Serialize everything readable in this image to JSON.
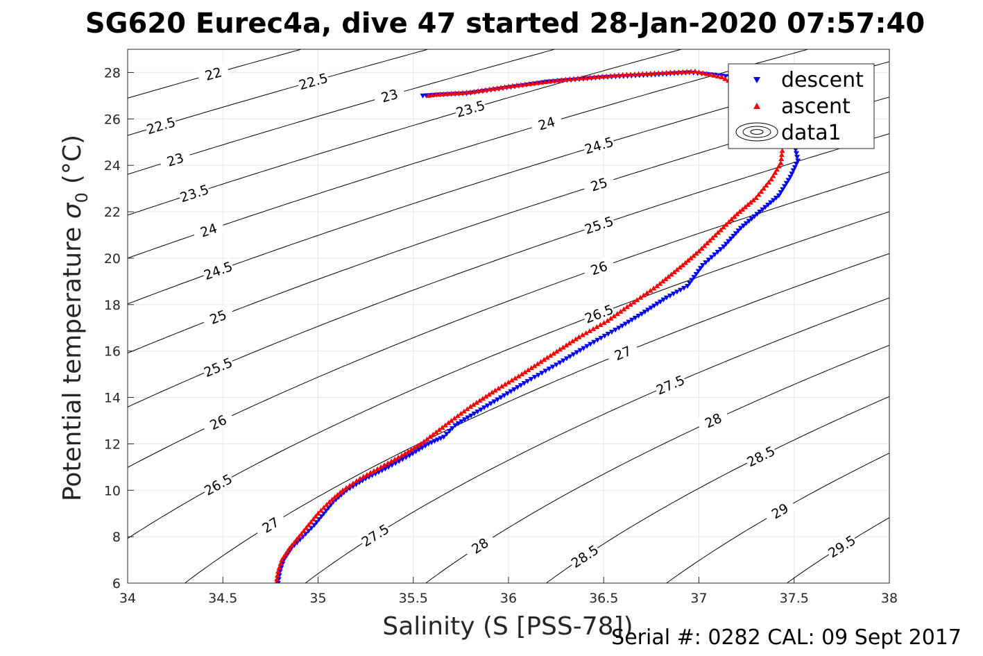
{
  "title": "SG620 Eurec4a, dive 47 started 28-Jan-2020 07:57:40",
  "footer": "Serial #: 0282  CAL: 09 Sept 2017",
  "chart_data": {
    "type": "scatter",
    "xlabel": "Salinity (S [PSS-78])",
    "ylabel": "Potential temperature",
    "ylabel_symbol": "σ",
    "ylabel_subscript": "0",
    "ylabel_unit": "(°C)",
    "xlim": [
      34,
      38
    ],
    "ylim": [
      6,
      29
    ],
    "x_ticks": [
      34,
      34.5,
      35,
      35.5,
      36,
      36.5,
      37,
      37.5,
      38
    ],
    "y_ticks": [
      6,
      8,
      10,
      12,
      14,
      16,
      18,
      20,
      22,
      24,
      26,
      28
    ],
    "x_tick_labels": [
      "34",
      "34.5",
      "35",
      "35.5",
      "36",
      "36.5",
      "37",
      "37.5",
      "38"
    ],
    "y_tick_labels": [
      "6",
      "8",
      "10",
      "12",
      "14",
      "16",
      "18",
      "20",
      "22",
      "24",
      "26",
      "28"
    ],
    "grid": true,
    "legend_position": "top-right",
    "series": [
      {
        "name": "descent",
        "marker": "triangle-down",
        "color": "#0000ff",
        "path": [
          [
            34.79,
            6.0
          ],
          [
            34.8,
            6.5
          ],
          [
            34.82,
            7.0
          ],
          [
            34.86,
            7.5
          ],
          [
            34.92,
            8.0
          ],
          [
            34.98,
            8.5
          ],
          [
            35.03,
            9.0
          ],
          [
            35.08,
            9.5
          ],
          [
            35.15,
            10.0
          ],
          [
            35.25,
            10.5
          ],
          [
            35.37,
            11.0
          ],
          [
            35.48,
            11.5
          ],
          [
            35.58,
            12.0
          ],
          [
            35.66,
            12.3
          ],
          [
            35.72,
            12.8
          ],
          [
            35.82,
            13.3
          ],
          [
            35.96,
            14.0
          ],
          [
            36.1,
            14.7
          ],
          [
            36.27,
            15.5
          ],
          [
            36.43,
            16.3
          ],
          [
            36.58,
            17.0
          ],
          [
            36.7,
            17.6
          ],
          [
            36.83,
            18.3
          ],
          [
            36.94,
            18.8
          ],
          [
            37.02,
            19.7
          ],
          [
            37.13,
            20.5
          ],
          [
            37.22,
            21.3
          ],
          [
            37.32,
            22.0
          ],
          [
            37.42,
            22.7
          ],
          [
            37.48,
            23.5
          ],
          [
            37.52,
            24.2
          ],
          [
            37.5,
            25.0
          ],
          [
            37.46,
            25.8
          ],
          [
            37.4,
            26.6
          ],
          [
            37.3,
            27.3
          ],
          [
            37.18,
            27.8
          ],
          [
            37.08,
            27.9
          ],
          [
            36.95,
            28.0
          ],
          [
            36.75,
            27.9
          ],
          [
            36.5,
            27.8
          ],
          [
            36.2,
            27.6
          ],
          [
            35.95,
            27.3
          ],
          [
            35.78,
            27.1
          ],
          [
            35.64,
            27.05
          ],
          [
            35.55,
            27.0
          ]
        ]
      },
      {
        "name": "ascent",
        "marker": "triangle-up",
        "color": "#ff0000",
        "path": [
          [
            34.78,
            6.0
          ],
          [
            34.79,
            6.5
          ],
          [
            34.81,
            7.0
          ],
          [
            34.85,
            7.5
          ],
          [
            34.9,
            8.0
          ],
          [
            34.95,
            8.5
          ],
          [
            35.0,
            9.0
          ],
          [
            35.06,
            9.5
          ],
          [
            35.13,
            10.0
          ],
          [
            35.22,
            10.5
          ],
          [
            35.33,
            11.0
          ],
          [
            35.44,
            11.5
          ],
          [
            35.54,
            12.0
          ],
          [
            35.62,
            12.5
          ],
          [
            35.7,
            13.0
          ],
          [
            35.8,
            13.6
          ],
          [
            35.93,
            14.3
          ],
          [
            36.07,
            15.0
          ],
          [
            36.22,
            15.8
          ],
          [
            36.37,
            16.6
          ],
          [
            36.52,
            17.3
          ],
          [
            36.64,
            18.0
          ],
          [
            36.78,
            18.8
          ],
          [
            36.9,
            19.6
          ],
          [
            37.0,
            20.3
          ],
          [
            37.1,
            21.1
          ],
          [
            37.2,
            21.9
          ],
          [
            37.3,
            22.6
          ],
          [
            37.38,
            23.4
          ],
          [
            37.43,
            24.1
          ],
          [
            37.44,
            24.8
          ],
          [
            37.42,
            25.6
          ],
          [
            37.36,
            26.4
          ],
          [
            37.26,
            27.2
          ],
          [
            37.12,
            27.8
          ],
          [
            36.98,
            28.05
          ],
          [
            36.85,
            28.0
          ],
          [
            36.6,
            27.9
          ],
          [
            36.3,
            27.7
          ],
          [
            36.0,
            27.4
          ],
          [
            35.8,
            27.15
          ],
          [
            35.62,
            27.05
          ],
          [
            35.58,
            27.0
          ]
        ]
      },
      {
        "name": "data1",
        "type": "contour",
        "levels": [
          22,
          22.5,
          23,
          23.5,
          24,
          24.5,
          25,
          25.5,
          26,
          26.5,
          27,
          27.5,
          28,
          28.5,
          29,
          29.5
        ],
        "level_labels": [
          "22",
          "22.5",
          "23",
          "23.5",
          "24",
          "24.5",
          "25",
          "25.5",
          "26",
          "26.5",
          "27",
          "27.5",
          "28",
          "28.5",
          "29",
          "29.5"
        ]
      }
    ]
  }
}
